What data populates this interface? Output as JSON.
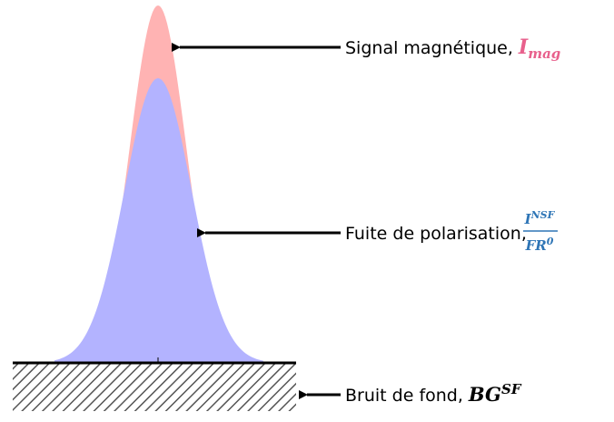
{
  "labels": [
    {
      "text": "Signal magnétique,",
      "symbol": "I",
      "subscript": "mag"
    },
    {
      "text": "Fuite de polarisation,",
      "numerator": "I",
      "numerator_sup": "NSF",
      "denominator": "FR",
      "denominator_sup": "0"
    },
    {
      "text": "Bruit de fond,",
      "symbol": "BG",
      "superscript": "SF"
    }
  ]
}
